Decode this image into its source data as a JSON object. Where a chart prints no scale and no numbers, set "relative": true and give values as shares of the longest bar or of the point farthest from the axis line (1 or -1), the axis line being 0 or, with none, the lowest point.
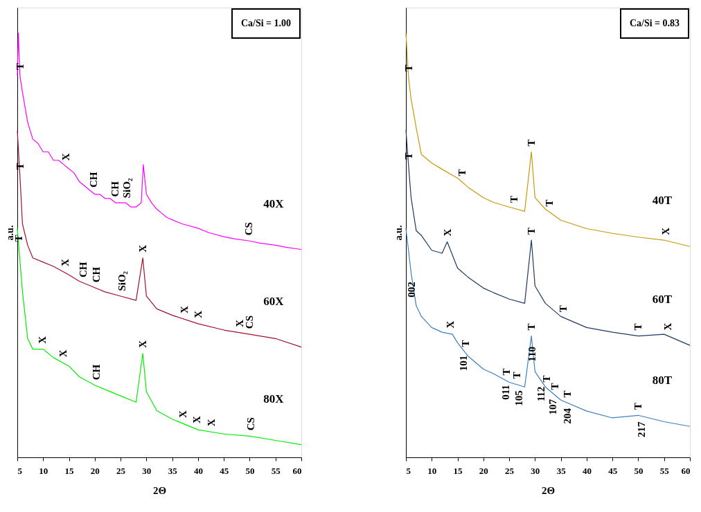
{
  "chart_data": [
    {
      "type": "line",
      "relative": true,
      "xlabel": "2Θ",
      "ylabel": "a.u.",
      "xlim": [
        5,
        60
      ],
      "xticks": [
        5,
        10,
        15,
        20,
        25,
        30,
        35,
        40,
        45,
        50,
        55,
        60
      ],
      "grid": false,
      "legend": false,
      "series": [
        {
          "name": "40X",
          "color": "#ff00ff",
          "x": [
            5,
            5.2,
            5.5,
            6,
            7,
            8,
            9,
            10,
            11,
            12,
            13,
            14,
            15,
            16,
            17,
            18,
            19,
            20,
            21,
            22,
            23,
            24,
            25,
            26,
            27,
            28,
            29,
            29.4,
            30,
            31,
            32,
            33,
            34,
            35,
            37,
            40,
            42,
            45,
            47,
            50,
            52,
            55,
            57,
            60
          ],
          "values": [
            0.9,
            1.0,
            0.9,
            0.86,
            0.79,
            0.75,
            0.74,
            0.72,
            0.72,
            0.7,
            0.7,
            0.69,
            0.68,
            0.67,
            0.65,
            0.64,
            0.63,
            0.62,
            0.62,
            0.61,
            0.61,
            0.6,
            0.6,
            0.6,
            0.59,
            0.59,
            0.6,
            0.69,
            0.62,
            0.6,
            0.585,
            0.575,
            0.565,
            0.56,
            0.55,
            0.54,
            0.53,
            0.52,
            0.515,
            0.51,
            0.505,
            0.5,
            0.495,
            0.49
          ]
        },
        {
          "name": "60X",
          "color": "#a0102a",
          "x": [
            5,
            5.5,
            6,
            7,
            8,
            10,
            12,
            15,
            17,
            20,
            22,
            25,
            28,
            29.3,
            30,
            32,
            35,
            40,
            45,
            50,
            55,
            60
          ],
          "values": [
            0.77,
            0.665,
            0.55,
            0.5,
            0.47,
            0.46,
            0.45,
            0.43,
            0.415,
            0.4,
            0.39,
            0.38,
            0.37,
            0.47,
            0.38,
            0.35,
            0.335,
            0.315,
            0.3,
            0.29,
            0.28,
            0.26
          ]
        },
        {
          "name": "80X",
          "color": "#00ee00",
          "x": [
            5,
            6,
            7,
            8,
            10,
            12,
            15,
            17,
            20,
            22,
            25,
            28,
            29.3,
            30,
            32,
            35,
            40,
            45,
            50,
            55,
            60
          ],
          "values": [
            0.54,
            0.39,
            0.28,
            0.255,
            0.255,
            0.235,
            0.215,
            0.19,
            0.17,
            0.16,
            0.145,
            0.13,
            0.245,
            0.155,
            0.11,
            0.09,
            0.065,
            0.055,
            0.05,
            0.04,
            0.03
          ]
        }
      ],
      "annotations": [
        "Ca/Si = 1.00",
        {
          "text": "T",
          "x": 5.5,
          "y": 0.9
        },
        {
          "text": "X",
          "x": 14.4,
          "y": 0.686
        },
        {
          "text": "CH",
          "x": 19.7,
          "y": 0.623
        },
        {
          "text": "CH",
          "x": 23.9,
          "y": 0.601
        },
        {
          "text": "SiO₂",
          "x": 26.2,
          "y": 0.598
        },
        {
          "text": "CS",
          "x": 49.8,
          "y": 0.51
        },
        {
          "text": "T",
          "x": 5.5,
          "y": 0.665
        },
        {
          "text": "T",
          "x": 5.3,
          "y": 0.495
        },
        {
          "text": "X",
          "x": 14.2,
          "y": 0.437
        },
        {
          "text": "CH",
          "x": 17.7,
          "y": 0.411
        },
        {
          "text": "CH",
          "x": 20.3,
          "y": 0.399
        },
        {
          "text": "SiO₂",
          "x": 25.2,
          "y": 0.379
        },
        {
          "text": "X",
          "x": 29.3,
          "y": 0.47
        },
        {
          "text": "X",
          "x": 37.3,
          "y": 0.326
        },
        {
          "text": "X",
          "x": 40.0,
          "y": 0.315
        },
        {
          "text": "X",
          "x": 48.1,
          "y": 0.294
        },
        {
          "text": "CS",
          "x": 50.0,
          "y": 0.29
        },
        {
          "text": "X",
          "x": 9.8,
          "y": 0.255
        },
        {
          "text": "X",
          "x": 13.8,
          "y": 0.223
        },
        {
          "text": "CH",
          "x": 20.3,
          "y": 0.169
        },
        {
          "text": "X",
          "x": 29.3,
          "y": 0.245
        },
        {
          "text": "X",
          "x": 37.1,
          "y": 0.08
        },
        {
          "text": "X",
          "x": 39.7,
          "y": 0.067
        },
        {
          "text": "X",
          "x": 42.6,
          "y": 0.06
        },
        {
          "text": "CS",
          "x": 50.2,
          "y": 0.05
        }
      ]
    },
    {
      "type": "line",
      "relative": true,
      "xlabel": "2Θ",
      "ylabel": "a.u.",
      "xlim": [
        5,
        60
      ],
      "xticks": [
        5,
        10,
        15,
        20,
        25,
        30,
        35,
        40,
        45,
        50,
        55,
        60
      ],
      "grid": false,
      "legend": false,
      "series": [
        {
          "name": "40T",
          "color": "#c8980a",
          "x": [
            5,
            5.5,
            6,
            7,
            8,
            10,
            12,
            15,
            17,
            20,
            22,
            25,
            28,
            29.3,
            30,
            32,
            35,
            40,
            45,
            50,
            55,
            60
          ],
          "values": [
            1.0,
            0.896,
            0.845,
            0.776,
            0.714,
            0.694,
            0.679,
            0.658,
            0.637,
            0.612,
            0.601,
            0.59,
            0.58,
            0.72,
            0.612,
            0.585,
            0.559,
            0.539,
            0.528,
            0.519,
            0.512,
            0.497
          ]
        },
        {
          "name": "60T",
          "color": "#1f3864",
          "x": [
            5,
            5.5,
            6,
            7,
            8,
            10,
            12,
            13,
            15,
            17,
            20,
            22,
            25,
            28,
            29.3,
            30,
            32,
            35,
            40,
            45,
            50,
            55,
            60
          ],
          "values": [
            0.772,
            0.689,
            0.612,
            0.534,
            0.523,
            0.488,
            0.481,
            0.508,
            0.446,
            0.425,
            0.399,
            0.388,
            0.373,
            0.363,
            0.512,
            0.404,
            0.363,
            0.332,
            0.306,
            0.295,
            0.286,
            0.29,
            0.264
          ]
        },
        {
          "name": "80T",
          "color": "#3a7fc1",
          "x": [
            5,
            5.5,
            6,
            7,
            8,
            10,
            12,
            14,
            15,
            17,
            20,
            22,
            25,
            28,
            29.3,
            30,
            32,
            35,
            40,
            45,
            50,
            55,
            60
          ],
          "values": [
            0.539,
            0.488,
            0.435,
            0.357,
            0.332,
            0.306,
            0.295,
            0.29,
            0.27,
            0.239,
            0.208,
            0.197,
            0.177,
            0.166,
            0.286,
            0.202,
            0.166,
            0.135,
            0.109,
            0.093,
            0.099,
            0.084,
            0.073
          ]
        }
      ],
      "annotations": [
        "Ca/Si = 0.83",
        {
          "text": "T",
          "x": 5.5,
          "y": 0.896
        },
        {
          "text": "T",
          "x": 5.5,
          "y": 0.689
        },
        {
          "text": "T",
          "x": 15.8,
          "y": 0.65
        },
        {
          "text": "T",
          "x": 25.9,
          "y": 0.587
        },
        {
          "text": "T",
          "x": 29.3,
          "y": 0.72
        },
        {
          "text": "T",
          "x": 32.8,
          "y": 0.578
        },
        {
          "text": "X",
          "x": 55.3,
          "y": 0.511
        },
        {
          "text": "X",
          "x": 13,
          "y": 0.508
        },
        {
          "text": "T",
          "x": 29.3,
          "y": 0.512
        },
        {
          "text": "T",
          "x": 35.5,
          "y": 0.329
        },
        {
          "text": "T",
          "x": 50.0,
          "y": 0.286
        },
        {
          "text": "X",
          "x": 55.7,
          "y": 0.286
        },
        {
          "text": "002",
          "x": 6.1,
          "y": 0.427
        },
        {
          "text": "X",
          "x": 13.6,
          "y": 0.291
        },
        {
          "text": "T",
          "x": 16.5,
          "y": 0.247
        },
        {
          "text": "T",
          "x": 24.5,
          "y": 0.18
        },
        {
          "text": "T",
          "x": 26.5,
          "y": 0.172
        },
        {
          "text": "T",
          "x": 29.3,
          "y": 0.286
        },
        {
          "text": "T",
          "x": 32.2,
          "y": 0.164
        },
        {
          "text": "T",
          "x": 33.9,
          "y": 0.146
        },
        {
          "text": "T",
          "x": 36.3,
          "y": 0.128
        },
        {
          "text": "101",
          "x": 16.1,
          "y": 0.253
        },
        {
          "text": "011",
          "x": 24.3,
          "y": 0.184
        },
        {
          "text": "105",
          "x": 26.8,
          "y": 0.171
        },
        {
          "text": "110",
          "x": 29.4,
          "y": 0.274
        },
        {
          "text": "112",
          "x": 31.2,
          "y": 0.18
        },
        {
          "text": "107",
          "x": 33.5,
          "y": 0.15
        },
        {
          "text": "204",
          "x": 36.2,
          "y": 0.129
        },
        {
          "text": "T",
          "x": 50.0,
          "y": 0.099
        },
        {
          "text": "217",
          "x": 50.6,
          "y": 0.097
        }
      ]
    }
  ]
}
